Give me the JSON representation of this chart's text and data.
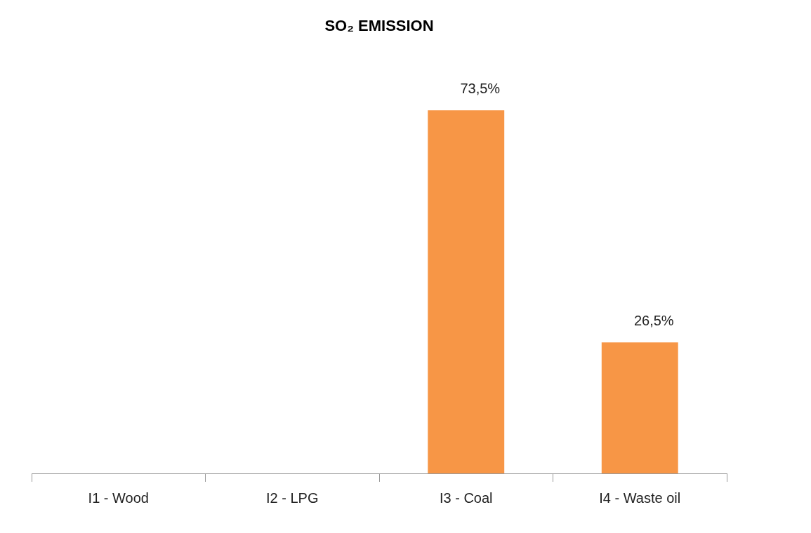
{
  "chart_data": {
    "type": "bar",
    "title": "SO₂ EMISSION",
    "categories": [
      "I1 - Wood",
      "I2 - LPG",
      "I3 - Coal",
      "I4 - Waste oil"
    ],
    "values": [
      null,
      null,
      73.5,
      26.5
    ],
    "value_labels": [
      null,
      null,
      "73,5%",
      "26,5%"
    ],
    "color": "#f79646",
    "grid": false,
    "legend": false
  }
}
